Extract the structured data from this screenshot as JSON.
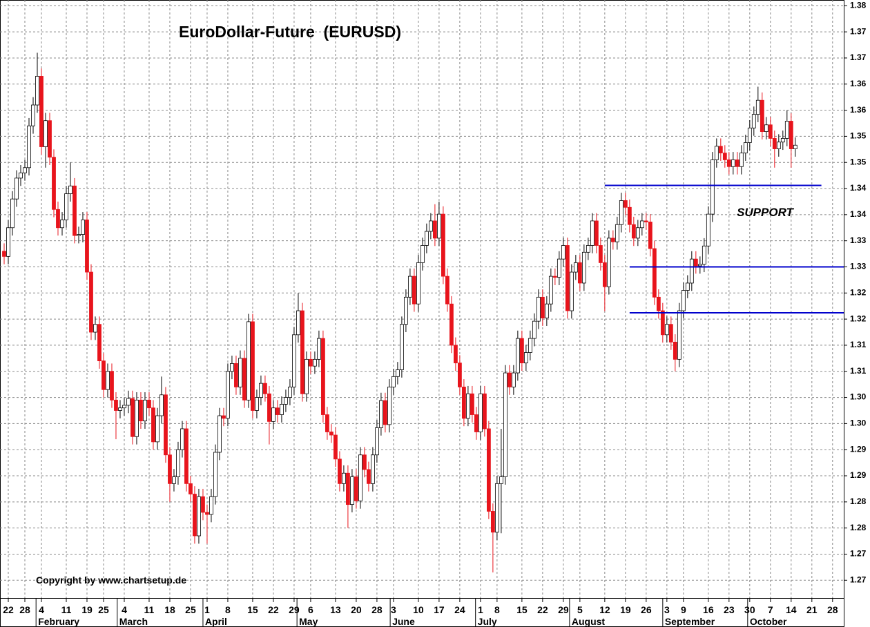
{
  "chart_data": {
    "type": "candlestick",
    "title": "EuroDollar-Future  (EURUSD)",
    "annotation": "SUPPORT",
    "copyright": "Copyright by www.chartsetup.de",
    "up_color": "#ffffff",
    "down_color": "#e8141c",
    "support_color": "#0000cc",
    "grid": true,
    "ylim": [
      1.2666,
      1.3811
    ],
    "yticks": [
      1.38,
      {
        "value": 1.375,
        "label": "1.37"
      },
      1.37,
      {
        "value": 1.365,
        "label": "1.36"
      },
      1.36,
      {
        "value": 1.355,
        "label": "1.35"
      },
      1.35,
      {
        "value": 1.345,
        "label": "1.34"
      },
      1.34,
      {
        "value": 1.335,
        "label": "1.33"
      },
      1.33,
      {
        "value": 1.325,
        "label": "1.32"
      },
      1.32,
      {
        "value": 1.315,
        "label": "1.31"
      },
      1.31,
      {
        "value": 1.305,
        "label": "1.30"
      },
      {
        "value": 1.3,
        "label": "1.30"
      },
      {
        "value": 1.295,
        "label": "1.29"
      },
      1.29,
      {
        "value": 1.285,
        "label": "1.28"
      },
      1.28,
      {
        "value": 1.275,
        "label": "1.27"
      },
      1.27
    ],
    "xlim": [
      -1,
      202.7
    ],
    "xticks": [
      {
        "value": 1,
        "label": "22"
      },
      {
        "value": 5,
        "label": "28"
      },
      {
        "value": 9,
        "label": "4"
      },
      {
        "value": 15,
        "label": "11"
      },
      {
        "value": 20,
        "label": "19"
      },
      {
        "value": 24,
        "label": "25"
      },
      {
        "value": 29,
        "label": "4"
      },
      {
        "value": 35,
        "label": "11"
      },
      {
        "value": 40,
        "label": "18"
      },
      {
        "value": 45,
        "label": "25"
      },
      {
        "value": 49,
        "label": "1"
      },
      {
        "value": 54,
        "label": "8"
      },
      {
        "value": 60,
        "label": "15"
      },
      {
        "value": 65,
        "label": "22"
      },
      {
        "value": 70,
        "label": "29"
      },
      {
        "value": 74,
        "label": "6"
      },
      {
        "value": 80,
        "label": "13"
      },
      {
        "value": 85,
        "label": "20"
      },
      {
        "value": 90,
        "label": "28"
      },
      {
        "value": 94,
        "label": "3"
      },
      {
        "value": 100,
        "label": "10"
      },
      {
        "value": 105,
        "label": "17"
      },
      {
        "value": 110,
        "label": "24"
      },
      {
        "value": 115,
        "label": "1"
      },
      {
        "value": 119,
        "label": "8"
      },
      {
        "value": 125,
        "label": "15"
      },
      {
        "value": 130,
        "label": "22"
      },
      {
        "value": 135,
        "label": "29"
      },
      {
        "value": 139,
        "label": "5"
      },
      {
        "value": 145,
        "label": "12"
      },
      {
        "value": 150,
        "label": "19"
      },
      {
        "value": 155,
        "label": "26"
      },
      {
        "value": 160,
        "label": "3"
      },
      {
        "value": 164,
        "label": "9"
      },
      {
        "value": 170,
        "label": "16"
      },
      {
        "value": 175,
        "label": "23"
      },
      {
        "value": 180,
        "label": "30"
      },
      {
        "value": 185,
        "label": "7"
      },
      {
        "value": 190,
        "label": "14"
      },
      {
        "value": 195,
        "label": "21"
      },
      {
        "value": 200,
        "label": "28"
      }
    ],
    "month_ticks": [
      {
        "value": 7.7,
        "label": "February"
      },
      {
        "value": 27.3,
        "label": "March"
      },
      {
        "value": 48,
        "label": "April"
      },
      {
        "value": 70.7,
        "label": "May"
      },
      {
        "value": 93.2,
        "label": "June"
      },
      {
        "value": 113.8,
        "label": "July"
      },
      {
        "value": 136.5,
        "label": "August"
      },
      {
        "value": 159,
        "label": "September"
      },
      {
        "value": 179.5,
        "label": "October"
      }
    ],
    "support_lines": [
      {
        "value": 1.3456,
        "from": 145,
        "to": 197.3
      },
      {
        "value": 1.33,
        "from": 151,
        "to": 202.7
      },
      {
        "value": 1.3212,
        "from": 151,
        "to": 202.7
      }
    ],
    "open": [
      1.333,
      1.332,
      1.3375,
      1.343,
      1.347,
      1.348,
      1.349,
      1.357,
      1.361,
      1.3665,
      1.353,
      1.358,
      1.351,
      1.341,
      1.3375,
      1.339,
      1.344,
      1.3455,
      1.336,
      1.3362,
      1.339,
      1.329,
      1.3175,
      1.319,
      1.312,
      1.3065,
      1.31,
      1.3045,
      1.3025,
      1.303,
      1.3035,
      1.3048,
      1.2975,
      1.3045,
      1.3005,
      1.3045,
      1.303,
      1.2965,
      1.3015,
      1.3055,
      1.294,
      1.2885,
      1.2898,
      1.295,
      1.299,
      1.2885,
      1.2865,
      1.2785,
      1.286,
      1.283,
      1.2826,
      1.286,
      1.2945,
      1.3015,
      1.301,
      1.31,
      1.3115,
      1.307,
      1.3125,
      1.3045,
      1.3195,
      1.3025,
      1.305,
      1.3077,
      1.3057,
      1.3004,
      1.303,
      1.3017,
      1.3037,
      1.305,
      1.307,
      1.317,
      1.3216,
      1.3057,
      1.3123,
      1.311,
      1.3123,
      1.3163,
      1.3017,
      1.2984,
      1.2978,
      1.2932,
      1.2885,
      1.2905,
      1.2845,
      1.2898,
      1.2852,
      1.294,
      1.2912,
      1.2885,
      1.294,
      1.2992,
      1.3044,
      1.2998,
      1.307,
      1.309,
      1.3103,
      1.319,
      1.3242,
      1.3282,
      1.3229,
      1.3308,
      1.3341,
      1.3368,
      1.3388,
      1.3355,
      1.3401,
      1.3282,
      1.3229,
      1.315,
      1.3116,
      1.307,
      1.301,
      1.3057,
      1.3017,
      1.2984,
      1.3057,
      1.299,
      1.2832,
      1.2792,
      1.2885,
      1.2898,
      1.3097,
      1.307,
      1.3097,
      1.3163,
      1.3116,
      1.3136,
      1.3163,
      1.3196,
      1.3242,
      1.3202,
      1.3229,
      1.3282,
      1.328,
      1.3315,
      1.3341,
      1.3216,
      1.329,
      1.3308,
      1.3269,
      1.3328,
      1.3341,
      1.3388,
      1.3341,
      1.3308,
      1.3262,
      1.3355,
      1.3348,
      1.3381,
      1.3427,
      1.3414,
      1.3381,
      1.3355,
      1.3375,
      1.3388,
      1.3386,
      1.3335,
      1.3242,
      1.3216,
      1.317,
      1.319,
      1.3156,
      1.3123,
      1.3216,
      1.3255,
      1.3269,
      1.3315,
      1.3302,
      1.3305,
      1.334,
      1.3401,
      1.3505,
      1.3531,
      1.3518,
      1.3505,
      1.3492,
      1.3505,
      1.3492,
      1.3518,
      1.3538,
      1.3566,
      1.3592,
      1.3619,
      1.3559,
      1.3572,
      1.3546,
      1.3526,
      1.3539,
      1.3546,
      1.3579,
      1.3526
    ],
    "high": [
      1.3345,
      1.339,
      1.3445,
      1.3485,
      1.3495,
      1.3505,
      1.3585,
      1.3625,
      1.371,
      1.368,
      1.3595,
      1.3595,
      1.3525,
      1.3425,
      1.3405,
      1.3455,
      1.35,
      1.347,
      1.3377,
      1.3405,
      1.3405,
      1.3305,
      1.3205,
      1.3205,
      1.3135,
      1.3115,
      1.3115,
      1.306,
      1.3045,
      1.305,
      1.3063,
      1.3063,
      1.306,
      1.306,
      1.306,
      1.306,
      1.3045,
      1.303,
      1.309,
      1.307,
      1.2955,
      1.2913,
      1.2965,
      1.3005,
      1.3005,
      1.29,
      1.288,
      1.2875,
      1.2875,
      1.2845,
      1.2875,
      1.296,
      1.303,
      1.303,
      1.3115,
      1.313,
      1.313,
      1.314,
      1.314,
      1.321,
      1.321,
      1.3065,
      1.3092,
      1.3092,
      1.3072,
      1.3045,
      1.3045,
      1.3052,
      1.3065,
      1.3085,
      1.3185,
      1.325,
      1.3231,
      1.3138,
      1.3138,
      1.3138,
      1.3178,
      1.3178,
      1.3032,
      1.2999,
      1.2993,
      1.2947,
      1.292,
      1.292,
      1.2913,
      1.2913,
      1.2955,
      1.2955,
      1.2927,
      1.2955,
      1.3007,
      1.3059,
      1.3059,
      1.3085,
      1.3105,
      1.3118,
      1.3205,
      1.3257,
      1.3297,
      1.3297,
      1.3323,
      1.3356,
      1.3383,
      1.3403,
      1.342,
      1.3425,
      1.3416,
      1.3297,
      1.3244,
      1.3165,
      1.3131,
      1.3085,
      1.3072,
      1.3072,
      1.3032,
      1.3072,
      1.3072,
      1.3005,
      1.2847,
      1.29,
      1.299,
      1.3112,
      1.3112,
      1.3112,
      1.3178,
      1.3178,
      1.3151,
      1.3178,
      1.3211,
      1.3257,
      1.3257,
      1.3244,
      1.3297,
      1.3297,
      1.333,
      1.3356,
      1.3356,
      1.3305,
      1.3323,
      1.3323,
      1.3343,
      1.3356,
      1.3403,
      1.3403,
      1.3356,
      1.3323,
      1.337,
      1.337,
      1.3396,
      1.3442,
      1.3442,
      1.3429,
      1.3396,
      1.339,
      1.3403,
      1.3403,
      1.3401,
      1.335,
      1.3257,
      1.3231,
      1.3205,
      1.3205,
      1.3171,
      1.3231,
      1.327,
      1.3284,
      1.333,
      1.333,
      1.332,
      1.3355,
      1.3416,
      1.352,
      1.3546,
      1.3546,
      1.3533,
      1.352,
      1.352,
      1.352,
      1.3533,
      1.3553,
      1.3581,
      1.3607,
      1.3645,
      1.3634,
      1.3587,
      1.3587,
      1.3561,
      1.3554,
      1.3561,
      1.36,
      1.3594,
      1.3548
    ],
    "low": [
      1.3305,
      1.3305,
      1.336,
      1.3415,
      1.3455,
      1.3465,
      1.3475,
      1.3555,
      1.3595,
      1.3515,
      1.349,
      1.3495,
      1.3395,
      1.336,
      1.336,
      1.3375,
      1.3425,
      1.3345,
      1.3345,
      1.3347,
      1.3275,
      1.316,
      1.316,
      1.3105,
      1.305,
      1.305,
      1.303,
      1.297,
      1.301,
      1.3015,
      1.302,
      1.296,
      1.296,
      1.299,
      1.299,
      1.3015,
      1.295,
      1.295,
      1.3,
      1.2925,
      1.285,
      1.287,
      1.2883,
      1.2935,
      1.287,
      1.285,
      1.277,
      1.277,
      1.2815,
      1.277,
      1.2811,
      1.2845,
      1.293,
      1.2995,
      1.2995,
      1.3085,
      1.3055,
      1.3055,
      1.303,
      1.303,
      1.301,
      1.301,
      1.3035,
      1.3042,
      1.296,
      1.2989,
      1.3002,
      1.3002,
      1.3022,
      1.3035,
      1.3055,
      1.3155,
      1.3042,
      1.3042,
      1.3095,
      1.3095,
      1.3108,
      1.3002,
      1.2969,
      1.2963,
      1.2917,
      1.287,
      1.287,
      1.28,
      1.283,
      1.2837,
      1.2837,
      1.2897,
      1.287,
      1.287,
      1.2925,
      1.2977,
      1.2983,
      1.2983,
      1.3055,
      1.3075,
      1.3088,
      1.3175,
      1.3227,
      1.3214,
      1.3214,
      1.3293,
      1.3326,
      1.3353,
      1.334,
      1.334,
      1.3267,
      1.3214,
      1.3135,
      1.3101,
      1.3055,
      1.2995,
      1.2995,
      1.3002,
      1.2969,
      1.2969,
      1.2975,
      1.2817,
      1.2715,
      1.2777,
      1.279,
      1.2883,
      1.3055,
      1.3055,
      1.3082,
      1.3101,
      1.3101,
      1.3121,
      1.3148,
      1.3181,
      1.3187,
      1.3187,
      1.3214,
      1.3265,
      1.3265,
      1.33,
      1.3201,
      1.3201,
      1.3275,
      1.3254,
      1.3254,
      1.3313,
      1.3326,
      1.3326,
      1.3293,
      1.3215,
      1.3247,
      1.3333,
      1.3333,
      1.3366,
      1.3399,
      1.3366,
      1.334,
      1.334,
      1.336,
      1.3371,
      1.332,
      1.3227,
      1.3201,
      1.3155,
      1.3155,
      1.3141,
      1.31,
      1.3108,
      1.3201,
      1.324,
      1.3254,
      1.3287,
      1.3287,
      1.329,
      1.3325,
      1.3386,
      1.349,
      1.3503,
      1.349,
      1.3477,
      1.3477,
      1.3477,
      1.3477,
      1.3503,
      1.3523,
      1.3551,
      1.3577,
      1.3544,
      1.3544,
      1.3531,
      1.349,
      1.3511,
      1.3524,
      1.3531,
      1.349,
      1.3511
    ],
    "close": [
      1.332,
      1.3375,
      1.343,
      1.347,
      1.348,
      1.349,
      1.357,
      1.361,
      1.3665,
      1.353,
      1.358,
      1.351,
      1.341,
      1.3375,
      1.339,
      1.344,
      1.3455,
      1.336,
      1.3362,
      1.339,
      1.329,
      1.3175,
      1.319,
      1.312,
      1.3065,
      1.31,
      1.3045,
      1.3025,
      1.303,
      1.3035,
      1.3048,
      1.2975,
      1.3045,
      1.3005,
      1.3045,
      1.303,
      1.2965,
      1.3015,
      1.3055,
      1.294,
      1.2885,
      1.2898,
      1.295,
      1.299,
      1.2885,
      1.2865,
      1.2785,
      1.286,
      1.283,
      1.2826,
      1.286,
      1.2945,
      1.3015,
      1.301,
      1.31,
      1.3115,
      1.307,
      1.3125,
      1.3045,
      1.3195,
      1.3025,
      1.305,
      1.3077,
      1.3057,
      1.3004,
      1.303,
      1.3017,
      1.3037,
      1.305,
      1.307,
      1.317,
      1.3216,
      1.3057,
      1.3123,
      1.311,
      1.3123,
      1.3163,
      1.3017,
      1.2984,
      1.2978,
      1.2932,
      1.2885,
      1.2905,
      1.2845,
      1.2898,
      1.2852,
      1.294,
      1.2912,
      1.2885,
      1.294,
      1.2992,
      1.3044,
      1.2998,
      1.307,
      1.309,
      1.3103,
      1.319,
      1.3242,
      1.3282,
      1.3229,
      1.3308,
      1.3341,
      1.3368,
      1.3388,
      1.3355,
      1.3401,
      1.3282,
      1.3229,
      1.315,
      1.3116,
      1.307,
      1.301,
      1.3057,
      1.3017,
      1.2984,
      1.3057,
      1.299,
      1.2832,
      1.2792,
      1.2885,
      1.2898,
      1.3097,
      1.307,
      1.3097,
      1.3163,
      1.3116,
      1.3136,
      1.3163,
      1.3196,
      1.3242,
      1.3202,
      1.3229,
      1.3282,
      1.328,
      1.3315,
      1.3341,
      1.3216,
      1.329,
      1.3308,
      1.3269,
      1.3328,
      1.3341,
      1.3388,
      1.3341,
      1.3308,
      1.3262,
      1.3355,
      1.3348,
      1.3381,
      1.3427,
      1.3414,
      1.3381,
      1.3355,
      1.3375,
      1.3388,
      1.3386,
      1.3335,
      1.3242,
      1.3216,
      1.317,
      1.319,
      1.3156,
      1.3123,
      1.3216,
      1.3255,
      1.3269,
      1.3315,
      1.3302,
      1.3305,
      1.334,
      1.3401,
      1.3505,
      1.3531,
      1.3518,
      1.3505,
      1.3492,
      1.3505,
      1.3492,
      1.3518,
      1.3538,
      1.3566,
      1.3592,
      1.3619,
      1.3559,
      1.3572,
      1.3546,
      1.3526,
      1.3539,
      1.3546,
      1.3579,
      1.3526,
      1.3533
    ]
  }
}
